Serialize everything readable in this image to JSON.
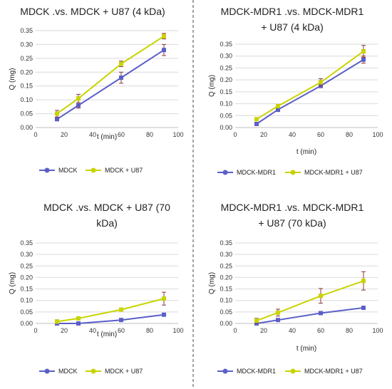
{
  "colors": {
    "series1": "#5b5fc7",
    "series2": "#c8d400",
    "error_bar": "#8b3a3a"
  },
  "chart_data": [
    {
      "type": "line",
      "title_lines": [
        "MDCK .vs. MDCK + U87 (4 kDa)"
      ],
      "xlabel": "t (min)",
      "ylabel": "Q (mg)",
      "xlim": [
        0,
        100
      ],
      "ylim": [
        0,
        0.35
      ],
      "xticks": [
        "0",
        "20",
        "40",
        "60",
        "80",
        "100"
      ],
      "yticks": [
        "0.00",
        "0.05",
        "0.10",
        "0.15",
        "0.20",
        "0.25",
        "0.30",
        "0.35"
      ],
      "grid": true,
      "legend_position": "bottom",
      "x": [
        15,
        30,
        60,
        90
      ],
      "series": [
        {
          "name": "MDCK",
          "values": [
            0.03,
            0.08,
            0.18,
            0.28
          ],
          "errors": [
            0.005,
            0.01,
            0.02,
            0.02
          ]
        },
        {
          "name": "MDCK + U87",
          "values": [
            0.05,
            0.105,
            0.23,
            0.33
          ],
          "errors": [
            0.012,
            0.015,
            0.01,
            0.01
          ]
        }
      ]
    },
    {
      "type": "line",
      "title_lines": [
        "MDCK-MDR1 .vs. MDCK-MDR1",
        "+ U87 (4 kDa)"
      ],
      "xlabel": "t (min)",
      "ylabel": "Q (mg)",
      "xlim": [
        0,
        100
      ],
      "ylim": [
        0,
        0.35
      ],
      "xticks": [
        "0",
        "20",
        "40",
        "60",
        "80",
        "100"
      ],
      "yticks": [
        "0.00",
        "0.05",
        "0.10",
        "0.15",
        "0.20",
        "0.25",
        "0.30",
        "0.35"
      ],
      "grid": true,
      "legend_position": "bottom",
      "x": [
        15,
        30,
        60,
        90
      ],
      "series": [
        {
          "name": "MDCK-MDR1",
          "values": [
            0.015,
            0.075,
            0.175,
            0.285
          ],
          "errors": [
            0.003,
            0.008,
            0.008,
            0.015
          ]
        },
        {
          "name": "MDCK-MDR1 + U87",
          "values": [
            0.035,
            0.09,
            0.19,
            0.32
          ],
          "errors": [
            0.005,
            0.005,
            0.015,
            0.025
          ]
        }
      ]
    },
    {
      "type": "line",
      "title_lines": [
        "MDCK .vs. MDCK + U87 (70",
        "kDa)"
      ],
      "xlabel": "t (min)",
      "ylabel": "Q (mg)",
      "xlim": [
        0,
        100
      ],
      "ylim": [
        0,
        0.35
      ],
      "xticks": [
        "0",
        "20",
        "40",
        "60",
        "80",
        "100"
      ],
      "yticks": [
        "0.00",
        "0.05",
        "0.10",
        "0.15",
        "0.20",
        "0.25",
        "0.30",
        "0.35"
      ],
      "grid": true,
      "legend_position": "bottom",
      "x": [
        15,
        30,
        60,
        90
      ],
      "series": [
        {
          "name": "MDCK",
          "values": [
            0.0,
            0.0,
            0.015,
            0.038
          ],
          "errors": [
            0.002,
            0.002,
            0.003,
            0.003
          ]
        },
        {
          "name": "MDCK + U87",
          "values": [
            0.008,
            0.022,
            0.06,
            0.108
          ],
          "errors": [
            0.008,
            0.005,
            0.007,
            0.028
          ]
        }
      ]
    },
    {
      "type": "line",
      "title_lines": [
        "MDCK-MDR1 .vs. MDCK-MDR1",
        "+ U87 (70 kDa)"
      ],
      "xlabel": "t (min)",
      "ylabel": "Q (mg)",
      "xlim": [
        0,
        100
      ],
      "ylim": [
        0,
        0.35
      ],
      "xticks": [
        "0",
        "20",
        "40",
        "60",
        "80",
        "100"
      ],
      "yticks": [
        "0.00",
        "0.05",
        "0.10",
        "0.15",
        "0.20",
        "0.25",
        "0.30",
        "0.35"
      ],
      "grid": true,
      "legend_position": "bottom",
      "x": [
        15,
        30,
        60,
        90
      ],
      "series": [
        {
          "name": "MDCK-MDR1",
          "values": [
            0.0,
            0.015,
            0.045,
            0.068
          ],
          "errors": [
            0.002,
            0.003,
            0.003,
            0.005
          ]
        },
        {
          "name": "MDCK-MDR1 + U87",
          "values": [
            0.012,
            0.047,
            0.12,
            0.185
          ],
          "errors": [
            0.01,
            0.015,
            0.032,
            0.04
          ]
        }
      ]
    }
  ]
}
